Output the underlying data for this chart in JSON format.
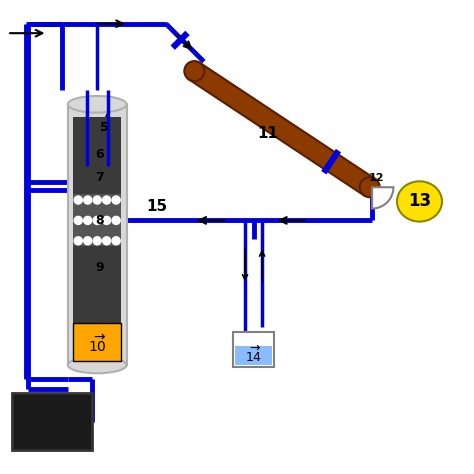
{
  "bg_color": "#ffffff",
  "blue": "#0000dd",
  "brown": "#8B3A00",
  "yellow": "#FFE000",
  "dark_gray": "#3a3a3a",
  "mid_gray": "#606060",
  "light_gray": "#b0b0b0",
  "very_light_gray": "#d8d8d8",
  "gold": "#FFA500",
  "light_blue": "#88bbff",
  "black": "#000000",
  "lw_pipe": 3.5,
  "figsize": [
    4.74,
    4.74
  ],
  "dpi": 100
}
